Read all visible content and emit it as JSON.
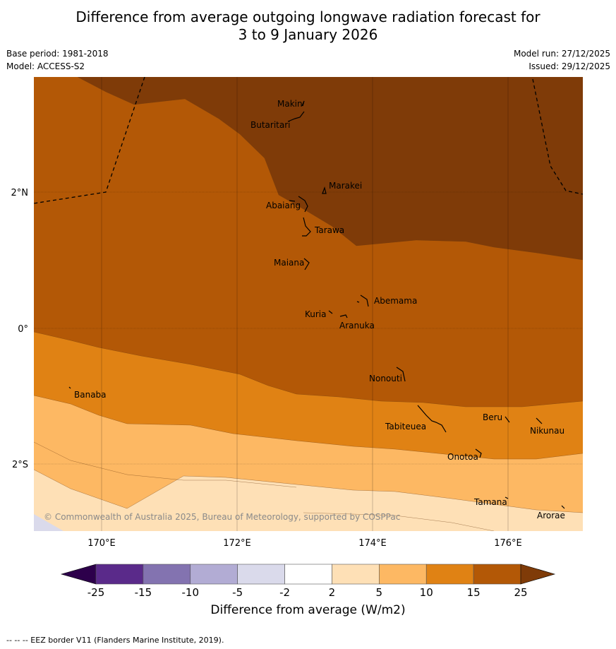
{
  "title_line1": "Difference from average outgoing longwave radiation forecast for",
  "title_line2": "3 to 9 January 2026",
  "base_period": "Base period: 1981-2018",
  "model": "Model: ACCESS-S2",
  "model_run": "Model run: 27/12/2025",
  "issued": "Issued: 29/12/2025",
  "lat_labels": [
    "2°N",
    "0°",
    "2°S"
  ],
  "lon_labels": [
    "170°E",
    "172°E",
    "174°E",
    "176°E"
  ],
  "places": [
    "Makin",
    "Butaritari",
    "Marakei",
    "Abaiang",
    "Tarawa",
    "Maiana",
    "Abemama",
    "Kuria",
    "Aranuka",
    "Nonouti",
    "Banaba",
    "Beru",
    "Tabiteuea",
    "Nikunau",
    "Onotoa",
    "Tamana",
    "Arorae"
  ],
  "copyright": "© Commonwealth of Australia 2025, Bureau of Meteorology, supported by COSPPac",
  "colorbar": {
    "ticks": [
      "-25",
      "-15",
      "-10",
      "-5",
      "-2",
      "2",
      "5",
      "10",
      "15",
      "25"
    ],
    "colors": [
      "#5a2a8a",
      "#8373b0",
      "#b2acd4",
      "#dadaeb",
      "#ffffff",
      "#fee0b6",
      "#fdb863",
      "#e08214",
      "#b35806",
      "#7f3b08"
    ],
    "extend_low": "#2d004b",
    "extend_high": "#7f3b08",
    "label": "Difference from average (W/m2)"
  },
  "footnote": "--  --  -- EEZ border V11 (Flanders Marine Institute, 2019)."
}
